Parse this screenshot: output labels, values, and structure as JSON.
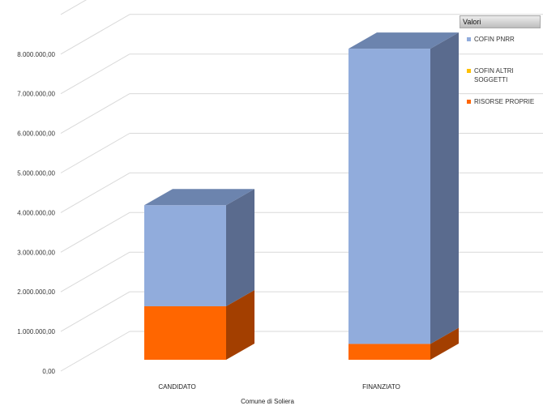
{
  "chart_data": {
    "type": "bar",
    "stacked": true,
    "three_d": true,
    "categories": [
      "CANDIDATO",
      "FINANZIATO"
    ],
    "series": [
      {
        "name": "COFIN PNRR",
        "values": [
          2550000,
          7450000
        ],
        "color": "#91acdc",
        "side_color": "#5a6b8e",
        "top_color": "#6c84ae"
      },
      {
        "name": "COFIN ALTRI SOGGETTI",
        "values": [
          0,
          0
        ],
        "color": "#ffc000",
        "side_color": "#a67c00",
        "top_color": "#ffcf40"
      },
      {
        "name": "RISORSE PROPRIE",
        "values": [
          1350000,
          400000
        ],
        "color": "#ff6600",
        "side_color": "#a33f00",
        "top_color": "#ff8533"
      }
    ],
    "y_ticks": [
      "0,00",
      "1.000.000,00",
      "2.000.000,00",
      "3.000.000,00",
      "4.000.000,00",
      "5.000.000,00",
      "6.000.000,00",
      "7.000.000,00",
      "8.000.000,00"
    ],
    "ylim": [
      0,
      9000000
    ],
    "xlabel": "Comune di Soliera",
    "grid": true,
    "legend_title": "Valori",
    "legend_position": "right"
  }
}
